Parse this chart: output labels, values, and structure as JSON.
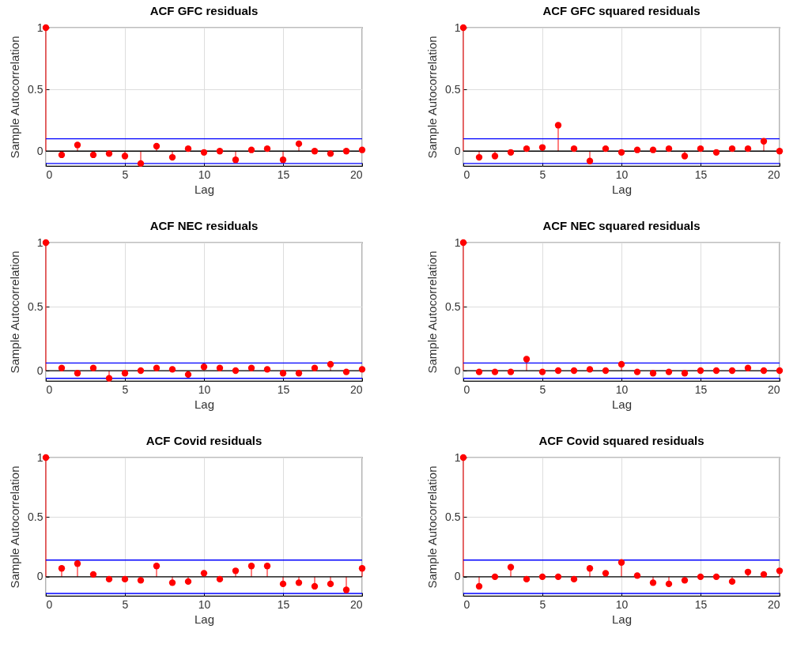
{
  "chart_data": [
    {
      "type": "lollipop",
      "title": "ACF GFC residuals",
      "xlabel": "Lag",
      "ylabel": "Sample Autocorrelation",
      "x": [
        0,
        1,
        2,
        3,
        4,
        5,
        6,
        7,
        8,
        9,
        10,
        11,
        12,
        13,
        14,
        15,
        16,
        17,
        18,
        19,
        20
      ],
      "values": [
        1,
        -0.03,
        0.05,
        -0.03,
        -0.02,
        -0.04,
        -0.1,
        0.04,
        -0.05,
        0.02,
        -0.01,
        0,
        -0.07,
        0.01,
        0.02,
        -0.07,
        0.06,
        0,
        -0.02,
        0,
        0.01
      ],
      "color": "#ff0000",
      "marker": "circle",
      "xlim": [
        0,
        20
      ],
      "xticks": [
        0,
        5,
        10,
        15,
        20
      ],
      "ylim": [
        -0.12,
        1
      ],
      "yticks": [
        0,
        0.5,
        1
      ],
      "grid": true,
      "ref_lines": [
        {
          "axis": "y",
          "value": 0.1,
          "color": "#0000ff"
        },
        {
          "axis": "y",
          "value": -0.1,
          "color": "#0000ff"
        }
      ]
    },
    {
      "type": "lollipop",
      "title": "ACF GFC squared residuals",
      "xlabel": "Lag",
      "ylabel": "Sample Autocorrelation",
      "x": [
        0,
        1,
        2,
        3,
        4,
        5,
        6,
        7,
        8,
        9,
        10,
        11,
        12,
        13,
        14,
        15,
        16,
        17,
        18,
        19,
        20
      ],
      "values": [
        1,
        -0.05,
        -0.04,
        -0.01,
        0.02,
        0.03,
        0.21,
        0.02,
        -0.08,
        0.02,
        -0.01,
        0.01,
        0.01,
        0.02,
        -0.04,
        0.02,
        -0.01,
        0.02,
        0.02,
        0.08,
        0
      ],
      "color": "#ff0000",
      "marker": "circle",
      "xlim": [
        0,
        20
      ],
      "xticks": [
        0,
        5,
        10,
        15,
        20
      ],
      "ylim": [
        -0.12,
        1
      ],
      "yticks": [
        0,
        0.5,
        1
      ],
      "grid": true,
      "ref_lines": [
        {
          "axis": "y",
          "value": 0.1,
          "color": "#0000ff"
        },
        {
          "axis": "y",
          "value": -0.1,
          "color": "#0000ff"
        }
      ]
    },
    {
      "type": "lollipop",
      "title": "ACF NEC residuals",
      "xlabel": "Lag",
      "ylabel": "Sample Autocorrelation",
      "x": [
        0,
        1,
        2,
        3,
        4,
        5,
        6,
        7,
        8,
        9,
        10,
        11,
        12,
        13,
        14,
        15,
        16,
        17,
        18,
        19,
        20
      ],
      "values": [
        1,
        0.02,
        -0.02,
        0.02,
        -0.06,
        -0.02,
        0,
        0.02,
        0.01,
        -0.03,
        0.03,
        0.02,
        0,
        0.02,
        0.01,
        -0.02,
        -0.02,
        0.02,
        0.05,
        -0.01,
        0.01
      ],
      "color": "#ff0000",
      "marker": "circle",
      "xlim": [
        0,
        20
      ],
      "xticks": [
        0,
        5,
        10,
        15,
        20
      ],
      "ylim": [
        -0.08,
        1
      ],
      "yticks": [
        0,
        0.5,
        1
      ],
      "grid": true,
      "ref_lines": [
        {
          "axis": "y",
          "value": 0.06,
          "color": "#0000ff"
        },
        {
          "axis": "y",
          "value": -0.06,
          "color": "#0000ff"
        }
      ]
    },
    {
      "type": "lollipop",
      "title": "ACF NEC squared residuals",
      "xlabel": "Lag",
      "ylabel": "Sample Autocorrelation",
      "x": [
        0,
        1,
        2,
        3,
        4,
        5,
        6,
        7,
        8,
        9,
        10,
        11,
        12,
        13,
        14,
        15,
        16,
        17,
        18,
        19,
        20
      ],
      "values": [
        1,
        -0.01,
        -0.01,
        -0.01,
        0.09,
        -0.01,
        0,
        0,
        0.01,
        0,
        0.05,
        -0.01,
        -0.02,
        -0.01,
        -0.02,
        0,
        0,
        0,
        0.02,
        0,
        0
      ],
      "color": "#ff0000",
      "marker": "circle",
      "xlim": [
        0,
        20
      ],
      "xticks": [
        0,
        5,
        10,
        15,
        20
      ],
      "ylim": [
        -0.08,
        1
      ],
      "yticks": [
        0,
        0.5,
        1
      ],
      "grid": true,
      "ref_lines": [
        {
          "axis": "y",
          "value": 0.06,
          "color": "#0000ff"
        },
        {
          "axis": "y",
          "value": -0.06,
          "color": "#0000ff"
        }
      ]
    },
    {
      "type": "lollipop",
      "title": "ACF Covid residuals",
      "xlabel": "Lag",
      "ylabel": "Sample Autocorrelation",
      "x": [
        0,
        1,
        2,
        3,
        4,
        5,
        6,
        7,
        8,
        9,
        10,
        11,
        12,
        13,
        14,
        15,
        16,
        17,
        18,
        19,
        20
      ],
      "values": [
        1,
        0.07,
        0.11,
        0.02,
        -0.02,
        -0.02,
        -0.03,
        0.09,
        -0.05,
        -0.04,
        0.03,
        -0.02,
        0.05,
        0.09,
        0.09,
        -0.06,
        -0.05,
        -0.08,
        -0.06,
        -0.11,
        0.07
      ],
      "color": "#ff0000",
      "marker": "circle",
      "xlim": [
        0,
        20
      ],
      "xticks": [
        0,
        5,
        10,
        15,
        20
      ],
      "ylim": [
        -0.16,
        1
      ],
      "yticks": [
        0,
        0.5,
        1
      ],
      "grid": true,
      "ref_lines": [
        {
          "axis": "y",
          "value": 0.14,
          "color": "#0000ff"
        },
        {
          "axis": "y",
          "value": -0.14,
          "color": "#0000ff"
        }
      ]
    },
    {
      "type": "lollipop",
      "title": "ACF Covid squared residuals",
      "xlabel": "Lag",
      "ylabel": "Sample Autocorrelation",
      "x": [
        0,
        1,
        2,
        3,
        4,
        5,
        6,
        7,
        8,
        9,
        10,
        11,
        12,
        13,
        14,
        15,
        16,
        17,
        18,
        19,
        20
      ],
      "values": [
        1,
        -0.08,
        0,
        0.08,
        -0.02,
        0,
        0,
        -0.02,
        0.07,
        0.03,
        0.12,
        0.01,
        -0.05,
        -0.06,
        -0.03,
        0,
        0,
        -0.04,
        0.04,
        0.02,
        0.05
      ],
      "color": "#ff0000",
      "marker": "circle",
      "xlim": [
        0,
        20
      ],
      "xticks": [
        0,
        5,
        10,
        15,
        20
      ],
      "ylim": [
        -0.16,
        1
      ],
      "yticks": [
        0,
        0.5,
        1
      ],
      "grid": true,
      "ref_lines": [
        {
          "axis": "y",
          "value": 0.14,
          "color": "#0000ff"
        },
        {
          "axis": "y",
          "value": -0.14,
          "color": "#0000ff"
        }
      ]
    }
  ]
}
